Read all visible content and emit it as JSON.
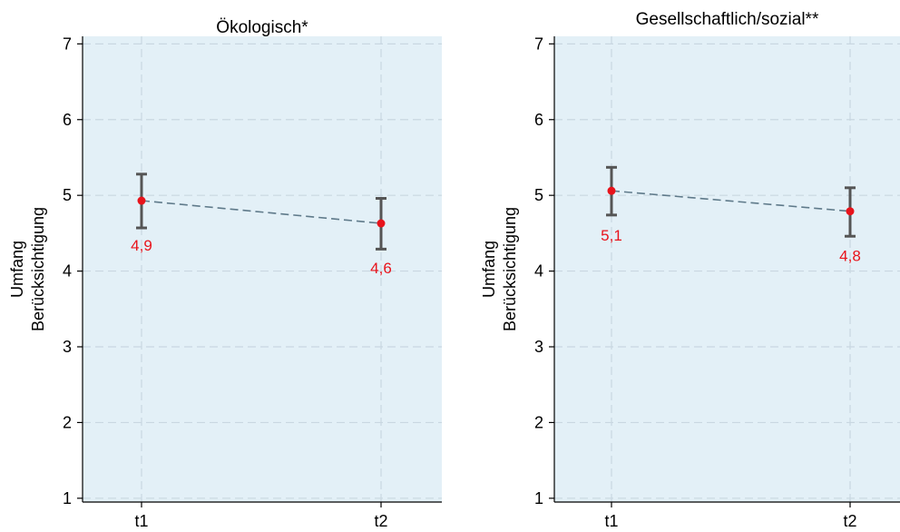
{
  "colors": {
    "plot_background": "#e3f0f7",
    "grid": "#c9d7e1",
    "axis": "#000000",
    "connector": "#5f7a8a",
    "errorbar": "#555555",
    "point": "#e8131b",
    "data_label": "#e8131b"
  },
  "chart_data": [
    {
      "type": "line",
      "title": "Ökologisch*",
      "ylabel": [
        "Umfang",
        "Berücksichtigung"
      ],
      "xlabel": "",
      "categories": [
        "t1",
        "t2"
      ],
      "yticks": [
        "1",
        "2",
        "3",
        "4",
        "5",
        "6",
        "7"
      ],
      "ylim": [
        0.95,
        7.1
      ],
      "grid": true,
      "legend": "none",
      "series": [
        {
          "values": [
            4.93,
            4.63
          ],
          "ci_low": [
            4.57,
            4.29
          ],
          "ci_high": [
            5.28,
            4.96
          ],
          "labels": [
            "4,9",
            "4,6"
          ]
        }
      ]
    },
    {
      "type": "line",
      "title": "Gesellschaftlich/sozial**",
      "ylabel": [
        "Umfang",
        "Berücksichtigung"
      ],
      "xlabel": "",
      "categories": [
        "t1",
        "t2"
      ],
      "yticks": [
        "1",
        "2",
        "3",
        "4",
        "5",
        "6",
        "7"
      ],
      "ylim": [
        0.95,
        7.1
      ],
      "grid": true,
      "legend": "none",
      "series": [
        {
          "values": [
            5.06,
            4.79
          ],
          "ci_low": [
            4.74,
            4.46
          ],
          "ci_high": [
            5.37,
            5.1
          ],
          "labels": [
            "5,1",
            "4,8"
          ]
        }
      ]
    }
  ]
}
